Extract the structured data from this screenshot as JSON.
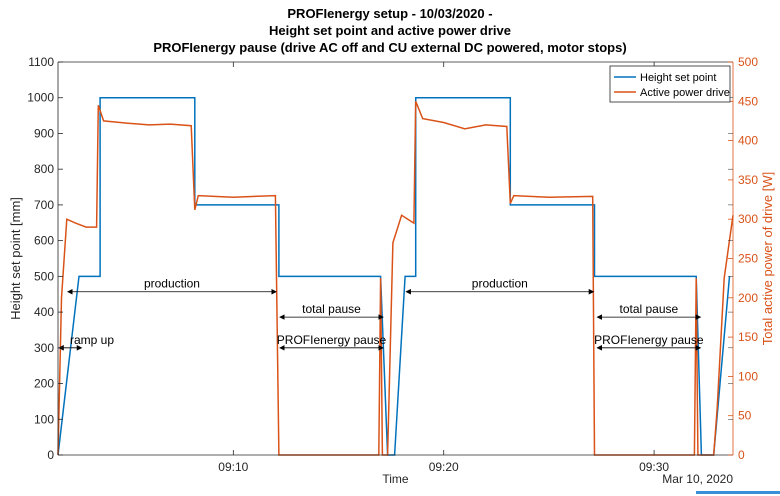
{
  "chart_data": {
    "type": "line",
    "title": [
      "PROFIenergy setup  - 10/03/2020 -",
      "Height set point and active power drive",
      "PROFIenergy pause (drive AC off and CU external DC powered, motor stops)"
    ],
    "xlabel": "Time",
    "x_secondary_label": "Mar 10, 2020",
    "xlim": [
      "09:01:40",
      "09:33:45"
    ],
    "x_ticks": [
      "09:10",
      "09:20",
      "09:30"
    ],
    "y_left": {
      "label": "Height set point [mm]",
      "lim": [
        0,
        1100
      ],
      "ticks": [
        0,
        100,
        200,
        300,
        400,
        500,
        600,
        700,
        800,
        900,
        1000,
        1100
      ]
    },
    "y_right": {
      "label": "Total active power of drive [W]",
      "lim": [
        0,
        500
      ],
      "ticks": [
        0,
        50,
        100,
        150,
        200,
        250,
        300,
        350,
        400,
        450,
        500
      ]
    },
    "legend_position": "top-right",
    "grid": false,
    "series": [
      {
        "name": "Height set point",
        "axis": "left",
        "color": "#0072BD",
        "points": [
          [
            "09:01:40",
            0
          ],
          [
            "09:02:40",
            500
          ],
          [
            "09:03:40",
            500
          ],
          [
            "09:03:40",
            1000
          ],
          [
            "09:08:10",
            1000
          ],
          [
            "09:08:10",
            700
          ],
          [
            "09:12:10",
            700
          ],
          [
            "09:12:10",
            500
          ],
          [
            "09:17:00",
            500
          ],
          [
            "09:17:20",
            0
          ],
          [
            "09:17:40",
            0
          ],
          [
            "09:18:10",
            500
          ],
          [
            "09:18:40",
            500
          ],
          [
            "09:18:40",
            1000
          ],
          [
            "09:23:10",
            1000
          ],
          [
            "09:23:10",
            700
          ],
          [
            "09:27:10",
            700
          ],
          [
            "09:27:10",
            500
          ],
          [
            "09:32:00",
            500
          ],
          [
            "09:32:15",
            0
          ],
          [
            "09:32:50",
            0
          ],
          [
            "09:33:35",
            500
          ]
        ]
      },
      {
        "name": "Active power drive",
        "axis": "right",
        "color": "#D95319",
        "points": [
          [
            "09:01:40",
            0
          ],
          [
            "09:01:50",
            200
          ],
          [
            "09:02:05",
            300
          ],
          [
            "09:02:30",
            295
          ],
          [
            "09:03:00",
            290
          ],
          [
            "09:03:30",
            290
          ],
          [
            "09:03:35",
            445
          ],
          [
            "09:03:50",
            425
          ],
          [
            "09:05:00",
            422
          ],
          [
            "09:06:00",
            420
          ],
          [
            "09:07:00",
            421
          ],
          [
            "09:08:00",
            419
          ],
          [
            "09:08:10",
            312
          ],
          [
            "09:08:20",
            330
          ],
          [
            "09:10:00",
            328
          ],
          [
            "09:12:00",
            330
          ],
          [
            "09:12:10",
            0
          ],
          [
            "09:16:55",
            0
          ],
          [
            "09:17:00",
            225
          ],
          [
            "09:17:05",
            0
          ],
          [
            "09:17:20",
            0
          ],
          [
            "09:17:35",
            270
          ],
          [
            "09:18:00",
            305
          ],
          [
            "09:18:35",
            295
          ],
          [
            "09:18:40",
            450
          ],
          [
            "09:19:00",
            428
          ],
          [
            "09:20:00",
            423
          ],
          [
            "09:21:00",
            415
          ],
          [
            "09:22:00",
            420
          ],
          [
            "09:23:00",
            418
          ],
          [
            "09:23:10",
            320
          ],
          [
            "09:23:20",
            330
          ],
          [
            "09:25:00",
            328
          ],
          [
            "09:27:05",
            329
          ],
          [
            "09:27:10",
            0
          ],
          [
            "09:31:55",
            0
          ],
          [
            "09:32:00",
            225
          ],
          [
            "09:32:05",
            0
          ],
          [
            "09:32:50",
            0
          ],
          [
            "09:33:00",
            60
          ],
          [
            "09:33:20",
            225
          ],
          [
            "09:33:45",
            305
          ]
        ]
      }
    ],
    "annotations": [
      {
        "text": "ramp up",
        "from": "09:01:40",
        "to": "09:02:50",
        "y": 300
      },
      {
        "text": "production",
        "from": "09:02:05",
        "to": "09:12:05",
        "y": 457
      },
      {
        "text": "total pause",
        "from": "09:12:10",
        "to": "09:17:10",
        "y": 386
      },
      {
        "text": "PROFIenergy pause",
        "from": "09:12:10",
        "to": "09:17:10",
        "y": 300
      },
      {
        "text": "production",
        "from": "09:18:10",
        "to": "09:27:10",
        "y": 457
      },
      {
        "text": "total pause",
        "from": "09:27:15",
        "to": "09:32:15",
        "y": 386
      },
      {
        "text": "PROFIenergy pause",
        "from": "09:27:15",
        "to": "09:32:15",
        "y": 300
      }
    ]
  }
}
